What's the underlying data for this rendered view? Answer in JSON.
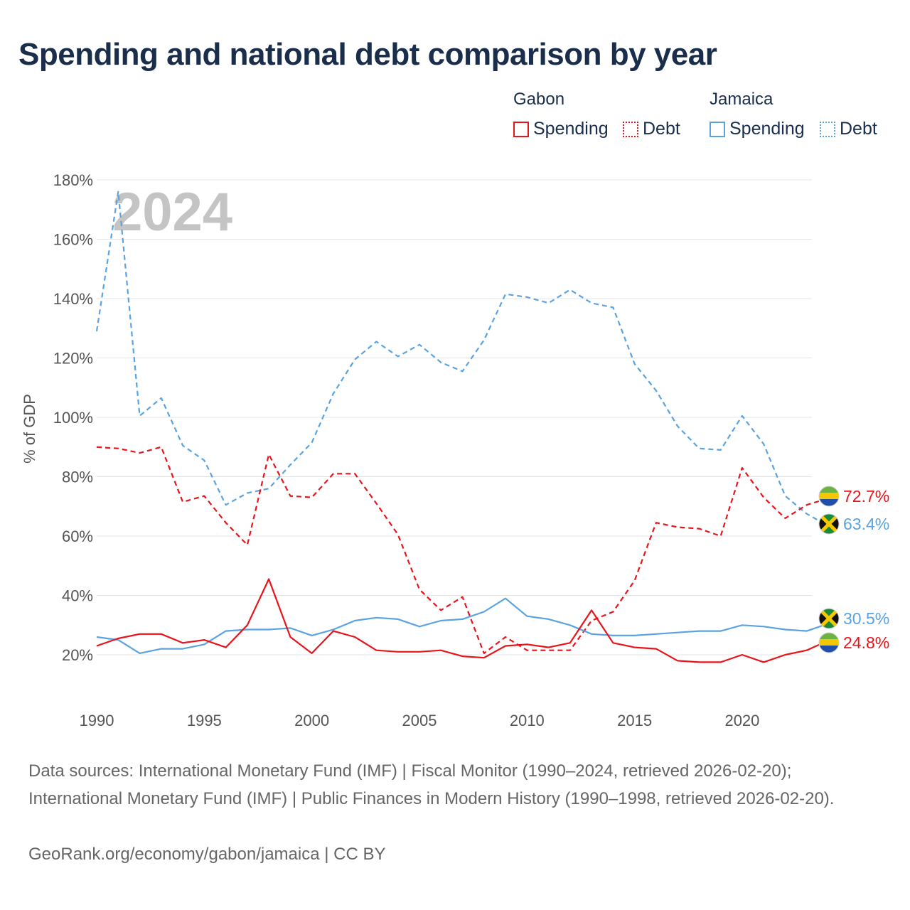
{
  "title": "Spending and national debt comparison by year",
  "legend": {
    "groups": [
      {
        "name": "Gabon",
        "color": "#e8141b",
        "items": [
          {
            "label": "Spending",
            "style": "solid"
          },
          {
            "label": "Debt",
            "style": "dotted"
          }
        ]
      },
      {
        "name": "Jamaica",
        "color": "#5ba3e0",
        "items": [
          {
            "label": "Spending",
            "style": "solid"
          },
          {
            "label": "Debt",
            "style": "dotted"
          }
        ]
      }
    ]
  },
  "year_label": "2024",
  "footer": {
    "sources": "Data sources: International Monetary Fund (IMF) | Fiscal Monitor (1990–2024, retrieved 2026-02-20); International Monetary Fund (IMF) | Public Finances in Modern History (1990–1998, retrieved 2026-02-20).",
    "attribution": "GeoRank.org/economy/gabon/jamaica | CC BY"
  },
  "chart_data": {
    "type": "line",
    "title": "Spending and national debt comparison by year",
    "xlabel": "",
    "ylabel": "% of GDP",
    "xlim": [
      1990,
      2024
    ],
    "ylim": [
      10,
      185
    ],
    "y_ticks": [
      20,
      40,
      60,
      80,
      100,
      120,
      140,
      160,
      180
    ],
    "y_tick_labels": [
      "20%",
      "40%",
      "60%",
      "80%",
      "100%",
      "120%",
      "140%",
      "160%",
      "180%"
    ],
    "x_ticks": [
      1990,
      1995,
      2000,
      2005,
      2010,
      2015,
      2020
    ],
    "x_tick_labels": [
      "1990",
      "1995",
      "2000",
      "2005",
      "2010",
      "2015",
      "2020"
    ],
    "grid": true,
    "x": [
      1990,
      1991,
      1992,
      1993,
      1994,
      1995,
      1996,
      1997,
      1998,
      1999,
      2000,
      2001,
      2002,
      2003,
      2004,
      2005,
      2006,
      2007,
      2008,
      2009,
      2010,
      2011,
      2012,
      2013,
      2014,
      2015,
      2016,
      2017,
      2018,
      2019,
      2020,
      2021,
      2022,
      2023,
      2024
    ],
    "series": [
      {
        "name": "Jamaica Debt",
        "color": "#5ba3e0",
        "dash": "dashed",
        "values": [
          129,
          176,
          100.5,
          106.5,
          90.5,
          85.5,
          70.5,
          74.5,
          76,
          84,
          91.5,
          108,
          119.5,
          125.5,
          120.5,
          124.5,
          118.5,
          115.5,
          126,
          141.5,
          140.5,
          138.5,
          143,
          138.5,
          137,
          118,
          109,
          97,
          89.5,
          89,
          100.5,
          91,
          73.5,
          67.5,
          63.4
        ]
      },
      {
        "name": "Gabon Debt",
        "color": "#e8141b",
        "dash": "dashed",
        "values": [
          90,
          89.5,
          88,
          90,
          71.5,
          73.5,
          64.5,
          57,
          87.5,
          73.5,
          73,
          81,
          81,
          71,
          60.5,
          42,
          35,
          39.5,
          20.5,
          26,
          21.5,
          21.5,
          21.5,
          31.5,
          34.5,
          45,
          64.5,
          63,
          62.5,
          60,
          83,
          73,
          66,
          70.5,
          72.7
        ]
      },
      {
        "name": "Jamaica Spending",
        "color": "#5ba3e0",
        "dash": "solid",
        "values": [
          26,
          25,
          20.5,
          22,
          22,
          23.5,
          28,
          28.5,
          28.5,
          29,
          26.5,
          28.5,
          31.5,
          32.5,
          32,
          29.5,
          31.5,
          32,
          34.5,
          39,
          33,
          32,
          30,
          27,
          26.5,
          26.5,
          27,
          27.5,
          28,
          28,
          30,
          29.5,
          28.5,
          28,
          30.5
        ]
      },
      {
        "name": "Gabon Spending",
        "color": "#e8141b",
        "dash": "solid",
        "values": [
          23,
          25.5,
          27,
          27,
          24,
          25,
          22.5,
          30,
          45.5,
          26,
          20.5,
          28,
          26,
          21.5,
          21,
          21,
          21.5,
          19.5,
          19,
          23,
          23.5,
          22.5,
          24,
          35,
          24,
          22.5,
          22,
          18,
          17.5,
          17.5,
          20,
          17.5,
          20,
          21.5,
          24.8
        ]
      }
    ],
    "end_labels": [
      {
        "text": "72.7%",
        "color": "#e8141b",
        "flag": "gabon"
      },
      {
        "text": "63.4%",
        "color": "#5ba3e0",
        "flag": "jamaica"
      },
      {
        "text": "30.5%",
        "color": "#5ba3e0",
        "flag": "jamaica"
      },
      {
        "text": "24.8%",
        "color": "#e8141b",
        "flag": "gabon"
      }
    ]
  }
}
